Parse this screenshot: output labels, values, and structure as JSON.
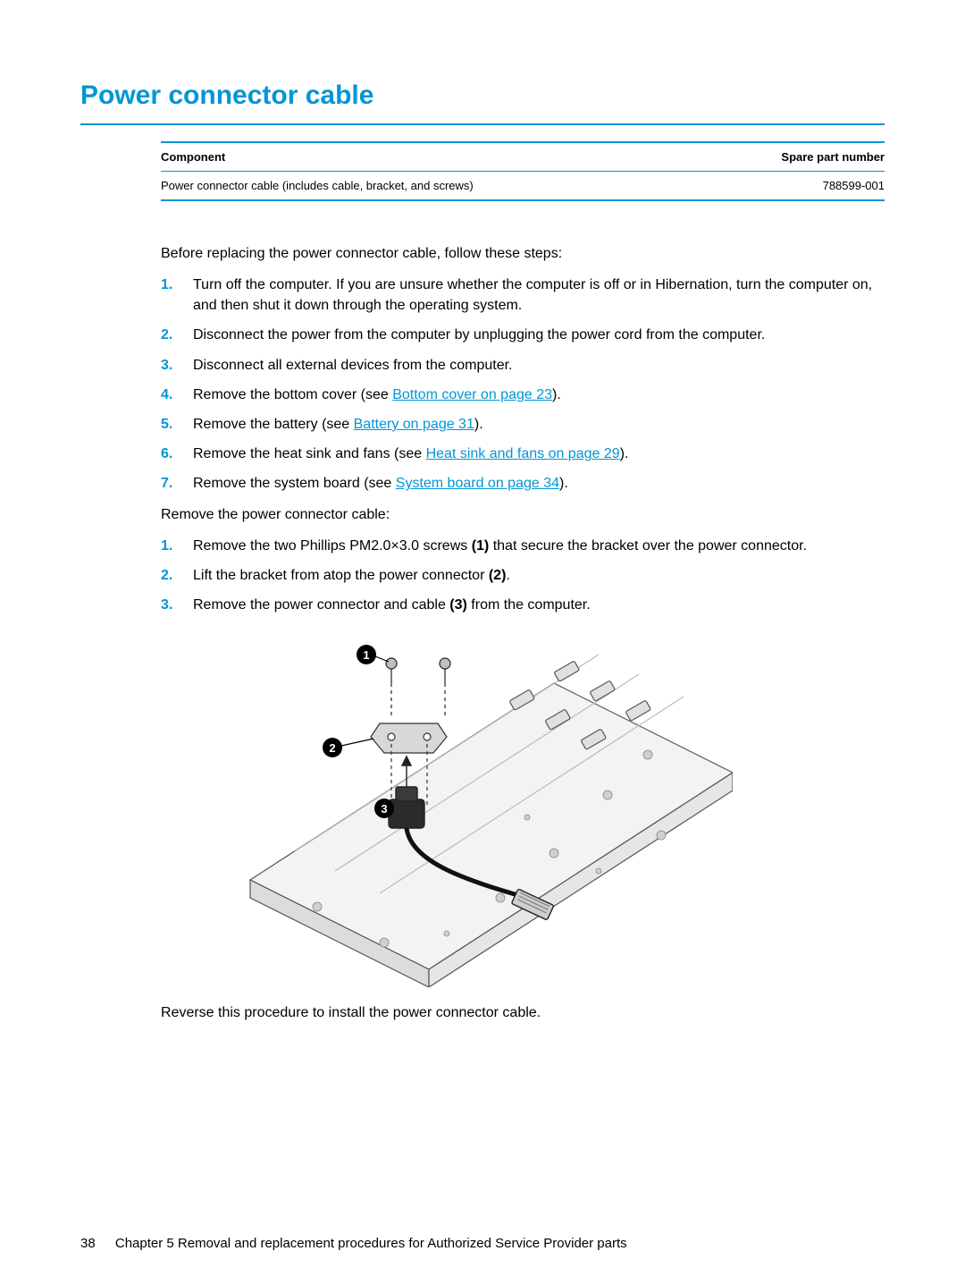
{
  "page_title": "Power connector cable",
  "table": {
    "headers": [
      "Component",
      "Spare part number"
    ],
    "rows": [
      [
        "Power connector cable (includes cable, bracket, and screws)",
        "788599-001"
      ]
    ]
  },
  "intro_text": "Before replacing the power connector cable, follow these steps:",
  "prep_steps": [
    {
      "segments": [
        {
          "text": "Turn off the computer. If you are unsure whether the computer is off or in Hibernation, turn the computer on, and then shut it down through the operating system."
        }
      ]
    },
    {
      "segments": [
        {
          "text": "Disconnect the power from the computer by unplugging the power cord from the computer."
        }
      ]
    },
    {
      "segments": [
        {
          "text": "Disconnect all external devices from the computer."
        }
      ]
    },
    {
      "segments": [
        {
          "text": "Remove the bottom cover (see "
        },
        {
          "text": "Bottom cover on page 23",
          "link": true
        },
        {
          "text": ")."
        }
      ]
    },
    {
      "segments": [
        {
          "text": "Remove the battery (see "
        },
        {
          "text": "Battery on page 31",
          "link": true
        },
        {
          "text": ")."
        }
      ]
    },
    {
      "segments": [
        {
          "text": "Remove the heat sink and fans (see "
        },
        {
          "text": "Heat sink and fans on page 29",
          "link": true
        },
        {
          "text": ")."
        }
      ]
    },
    {
      "segments": [
        {
          "text": "Remove the system board (see "
        },
        {
          "text": "System board on page 34",
          "link": true
        },
        {
          "text": ")."
        }
      ]
    }
  ],
  "removal_intro": "Remove the power connector cable:",
  "removal_steps": [
    {
      "segments": [
        {
          "text": "Remove the two Phillips PM2.0×3.0 screws "
        },
        {
          "text": "(1)",
          "bold": true
        },
        {
          "text": " that secure the bracket over the power connector."
        }
      ]
    },
    {
      "segments": [
        {
          "text": "Lift the bracket from atop the power connector "
        },
        {
          "text": "(2)",
          "bold": true
        },
        {
          "text": "."
        }
      ]
    },
    {
      "segments": [
        {
          "text": "Remove the power connector and cable "
        },
        {
          "text": "(3)",
          "bold": true
        },
        {
          "text": " from the computer."
        }
      ]
    }
  ],
  "closing_text": "Reverse this procedure to install the power connector cable.",
  "figure": {
    "callouts": [
      "1",
      "2",
      "3"
    ]
  },
  "footer": {
    "page_number": "38",
    "chapter_text": "Chapter 5   Removal and replacement procedures for Authorized Service Provider parts"
  },
  "colors": {
    "accent": "#0096d6",
    "text": "#000000",
    "figure_fill": "#e8e8e8",
    "figure_stroke": "#555555"
  }
}
